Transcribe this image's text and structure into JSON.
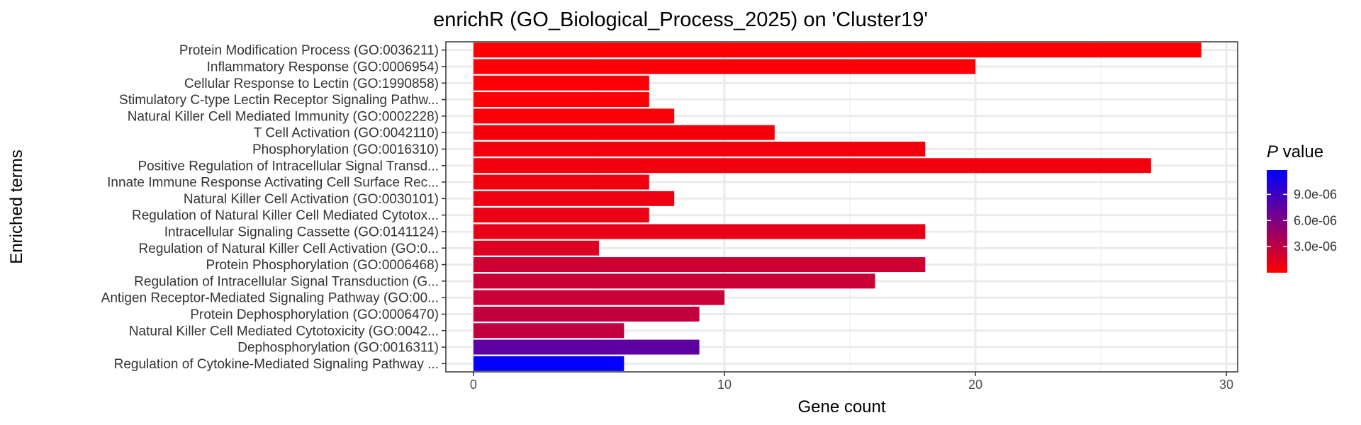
{
  "chart_data": {
    "type": "bar",
    "orientation": "horizontal",
    "title": "enrichR (GO_Biological_Process_2025) on 'Cluster19'",
    "xlabel": "Gene count",
    "ylabel": "Enriched terms",
    "xlim": [
      -1.1,
      30.45
    ],
    "xticks": [
      0,
      10,
      20,
      30
    ],
    "grid": true,
    "categories": [
      "Protein Modification Process (GO:0036211)",
      "Inflammatory Response (GO:0006954)",
      "Cellular Response to Lectin (GO:1990858)",
      "Stimulatory C-type Lectin Receptor Signaling Pathw...",
      "Natural Killer Cell Mediated Immunity (GO:0002228)",
      "T Cell Activation (GO:0042110)",
      "Phosphorylation (GO:0016310)",
      "Positive Regulation of Intracellular Signal Transd...",
      "Innate Immune Response Activating Cell Surface Rec...",
      "Natural Killer Cell Activation (GO:0030101)",
      "Regulation of Natural Killer Cell Mediated Cytotox...",
      "Intracellular Signaling Cassette (GO:0141124)",
      "Regulation of Natural Killer Cell Activation (GO:0...",
      "Protein Phosphorylation (GO:0006468)",
      "Regulation of Intracellular Signal Transduction (G...",
      "Antigen Receptor-Mediated Signaling Pathway (GO:00...",
      "Protein Dephosphorylation (GO:0006470)",
      "Natural Killer Cell Mediated Cytotoxicity (GO:0042...",
      "Dephosphorylation (GO:0016311)",
      "Regulation of Cytokine-Mediated Signaling Pathway ..."
    ],
    "values": [
      29,
      20,
      7,
      7,
      8,
      12,
      18,
      27,
      7,
      8,
      7,
      18,
      5,
      18,
      16,
      10,
      9,
      6,
      9,
      6
    ],
    "p_values": [
      1e-07,
      2e-07,
      2e-07,
      2e-07,
      3e-07,
      5e-07,
      6e-07,
      6e-07,
      7e-07,
      8e-07,
      9e-07,
      1e-06,
      1.6e-06,
      2.3e-06,
      2.5e-06,
      2.6e-06,
      2.8e-06,
      2.9e-06,
      7.5e-06,
      1.16e-05
    ],
    "legend": {
      "title_italic": "P",
      "title_rest": " value",
      "min": 0,
      "max": 1.18e-05,
      "ticks": [
        3e-06,
        6e-06,
        9e-06
      ],
      "tick_labels": [
        "3.0e-06",
        "6.0e-06",
        "9.0e-06"
      ],
      "low_color": "#ff0000",
      "high_color": "#0000ff",
      "placement": "right"
    }
  }
}
